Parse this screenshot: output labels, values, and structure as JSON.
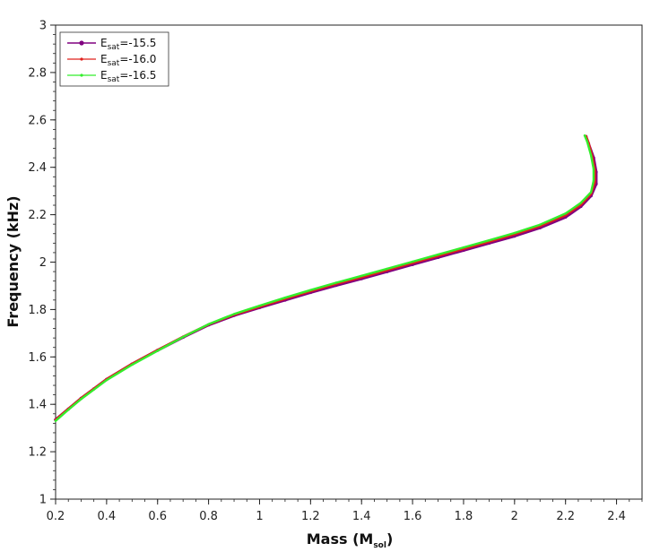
{
  "chart_data": {
    "type": "line",
    "title": "",
    "xlabel": {
      "main": "Mass (M",
      "sub": "sol",
      "end": ")"
    },
    "ylabel": "Frequency (kHz)",
    "xlim": [
      0.2,
      2.5
    ],
    "ylim": [
      1,
      3
    ],
    "xticks": [
      0.2,
      0.4,
      0.6,
      0.8,
      1,
      1.2,
      1.4,
      1.6,
      1.8,
      2,
      2.2,
      2.4
    ],
    "xtick_labels": [
      "0.2",
      "0.4",
      "0.6",
      "0.8",
      "1",
      "1.2",
      "1.4",
      "1.6",
      "1.8",
      "2",
      "2.2",
      "2.4"
    ],
    "yticks": [
      1,
      1.2,
      1.4,
      1.6,
      1.8,
      2,
      2.2,
      2.4,
      2.6,
      2.8,
      3
    ],
    "ytick_labels": [
      "1",
      "1.2",
      "1.4",
      "1.6",
      "1.8",
      "2",
      "2.2",
      "2.4",
      "2.6",
      "2.8",
      "3"
    ],
    "grid": false,
    "legend_position": "top-left",
    "series": [
      {
        "name": {
          "main": "E",
          "sub": "sat",
          "rest": "=-15.5"
        },
        "color": "#800080",
        "marker": "circle",
        "x": [
          0.2,
          0.25,
          0.3,
          0.35,
          0.4,
          0.5,
          0.6,
          0.7,
          0.8,
          0.9,
          1.0,
          1.1,
          1.2,
          1.3,
          1.4,
          1.5,
          1.6,
          1.7,
          1.8,
          1.9,
          2.0,
          2.1,
          2.2,
          2.26,
          2.3,
          2.32,
          2.32,
          2.31,
          2.29,
          2.28
        ],
        "y": [
          1.335,
          1.38,
          1.425,
          1.465,
          1.505,
          1.57,
          1.628,
          1.683,
          1.735,
          1.775,
          1.808,
          1.84,
          1.872,
          1.902,
          1.93,
          1.96,
          1.99,
          2.02,
          2.05,
          2.08,
          2.11,
          2.145,
          2.19,
          2.235,
          2.28,
          2.33,
          2.38,
          2.44,
          2.5,
          2.53
        ]
      },
      {
        "name": {
          "main": "E",
          "sub": "sat",
          "rest": "=-16.0"
        },
        "color": "#e0201c",
        "marker": "small-dot",
        "x": [
          0.2,
          0.25,
          0.3,
          0.35,
          0.4,
          0.5,
          0.6,
          0.7,
          0.8,
          0.9,
          1.0,
          1.1,
          1.2,
          1.3,
          1.4,
          1.5,
          1.6,
          1.7,
          1.8,
          1.9,
          2.0,
          2.1,
          2.2,
          2.26,
          2.3,
          2.315,
          2.315,
          2.305,
          2.29,
          2.28
        ],
        "y": [
          1.335,
          1.381,
          1.426,
          1.466,
          1.506,
          1.571,
          1.629,
          1.685,
          1.737,
          1.778,
          1.812,
          1.845,
          1.877,
          1.908,
          1.936,
          1.966,
          1.996,
          2.026,
          2.056,
          2.086,
          2.117,
          2.152,
          2.198,
          2.242,
          2.288,
          2.337,
          2.387,
          2.445,
          2.505,
          2.532
        ]
      },
      {
        "name": {
          "main": "E",
          "sub": "sat",
          "rest": "=-16.5"
        },
        "color": "#33ee2c",
        "marker": "small-dot",
        "x": [
          0.2,
          0.25,
          0.3,
          0.35,
          0.4,
          0.5,
          0.6,
          0.7,
          0.8,
          0.9,
          1.0,
          1.1,
          1.2,
          1.3,
          1.4,
          1.5,
          1.6,
          1.7,
          1.8,
          1.9,
          2.0,
          2.1,
          2.2,
          2.26,
          2.3,
          2.31,
          2.31,
          2.3,
          2.285,
          2.275
        ],
        "y": [
          1.33,
          1.377,
          1.422,
          1.462,
          1.502,
          1.567,
          1.626,
          1.684,
          1.738,
          1.781,
          1.816,
          1.85,
          1.882,
          1.913,
          1.942,
          1.972,
          2.002,
          2.032,
          2.062,
          2.092,
          2.123,
          2.158,
          2.205,
          2.25,
          2.295,
          2.343,
          2.393,
          2.45,
          2.508,
          2.534
        ]
      }
    ]
  }
}
